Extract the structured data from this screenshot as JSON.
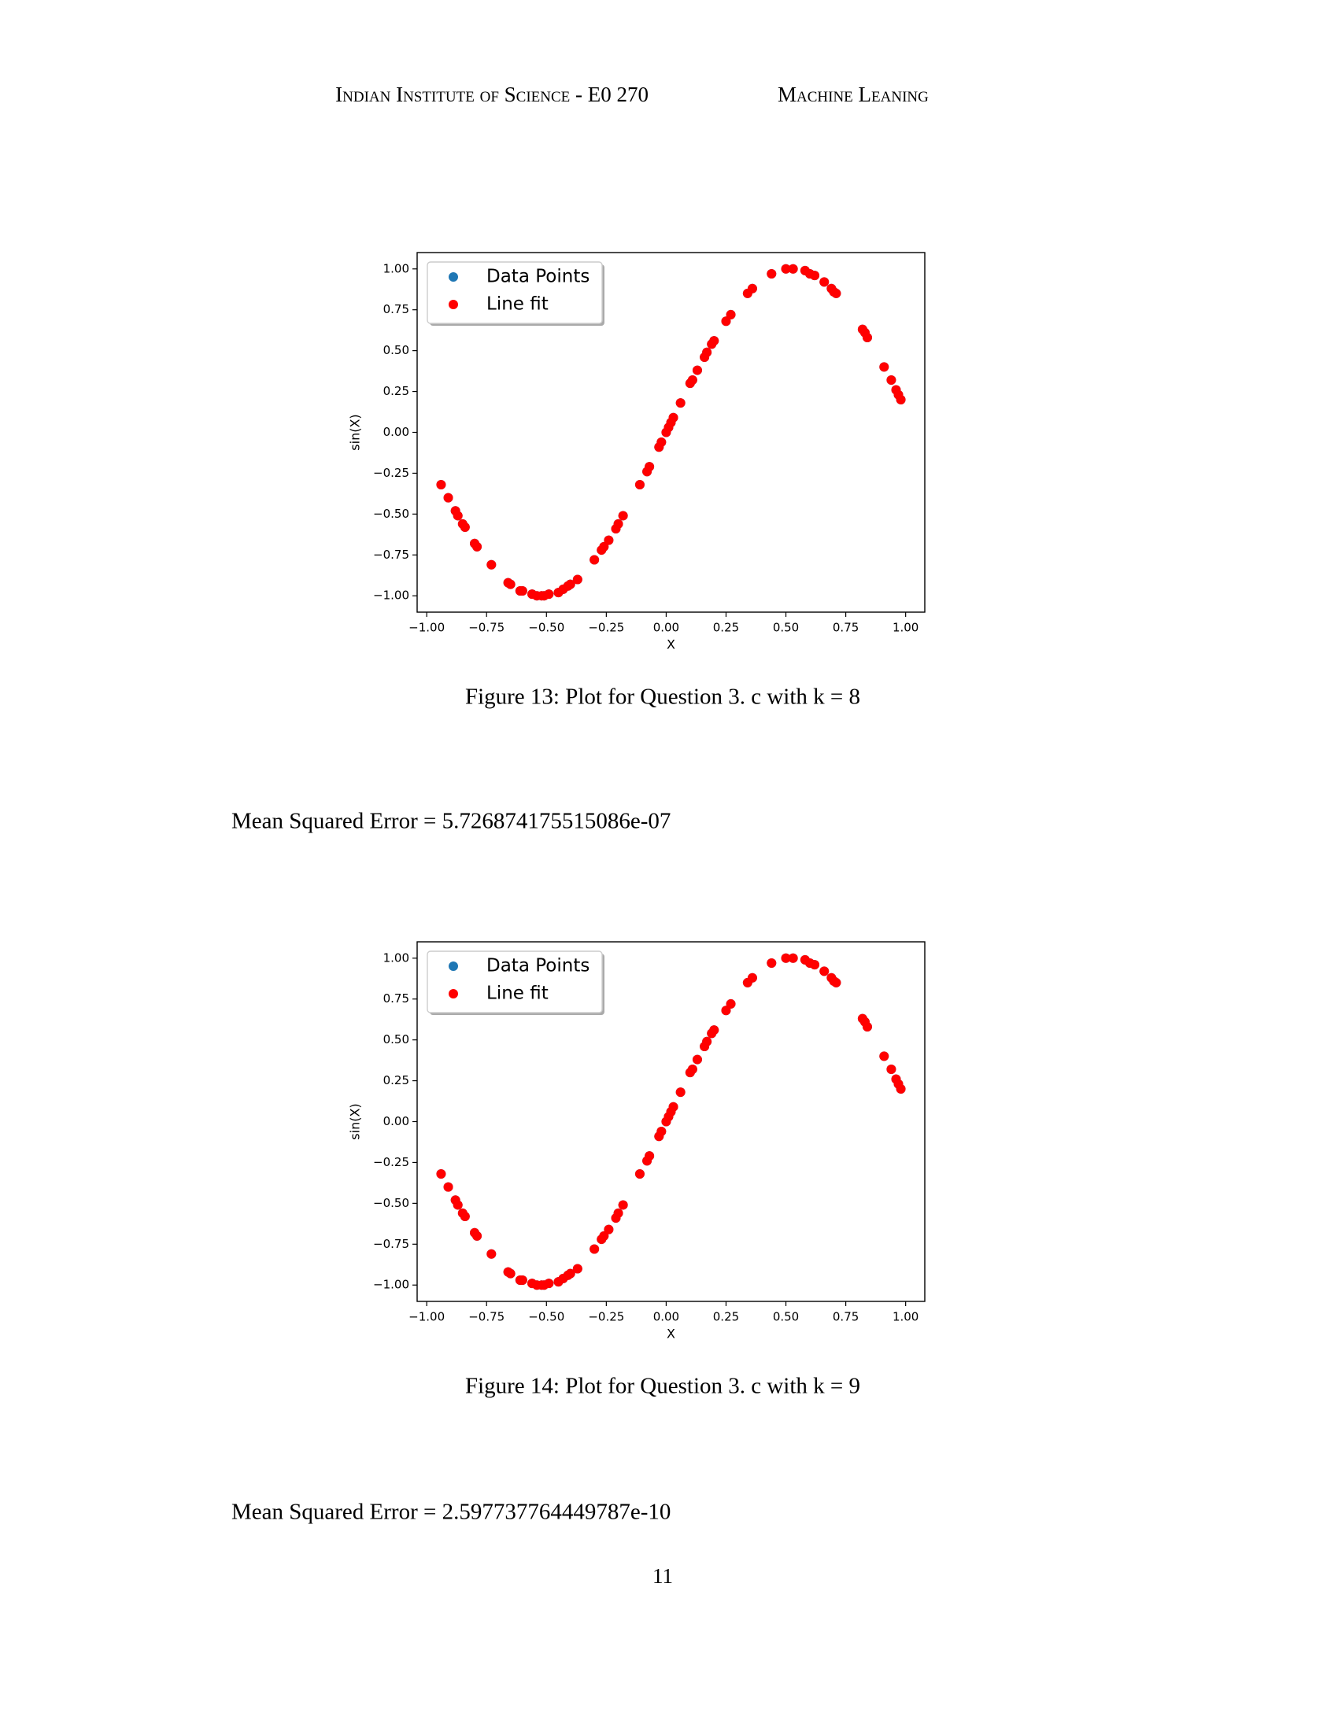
{
  "header": {
    "left": "Indian Institute of Science - E0 270",
    "right": "Machine Leaning"
  },
  "chart_data": [
    {
      "type": "scatter",
      "xlabel": "X",
      "ylabel": "sin(X)",
      "legend": "upper left",
      "caption": "Figure 13: Plot for Question 3. c with k = 8",
      "x": [
        -0.94,
        -0.91,
        -0.88,
        -0.87,
        -0.85,
        -0.84,
        -0.8,
        -0.79,
        -0.73,
        -0.66,
        -0.65,
        -0.61,
        -0.6,
        -0.56,
        -0.54,
        -0.52,
        -0.51,
        -0.49,
        -0.45,
        -0.43,
        -0.41,
        -0.4,
        -0.37,
        -0.3,
        -0.27,
        -0.26,
        -0.24,
        -0.21,
        -0.2,
        -0.18,
        -0.11,
        -0.08,
        -0.07,
        -0.03,
        -0.02,
        0.0,
        0.01,
        0.02,
        0.03,
        0.06,
        0.1,
        0.11,
        0.13,
        0.16,
        0.17,
        0.19,
        0.2,
        0.25,
        0.27,
        0.34,
        0.36,
        0.44,
        0.5,
        0.53,
        0.58,
        0.6,
        0.62,
        0.66,
        0.69,
        0.7,
        0.71,
        0.82,
        0.83,
        0.84,
        0.91,
        0.94,
        0.96,
        0.97,
        0.98
      ],
      "series": [
        {
          "name": "Data Points",
          "color": "#1f77b4",
          "values": [
            -0.32,
            -0.4,
            -0.48,
            -0.51,
            -0.56,
            -0.58,
            -0.68,
            -0.7,
            -0.81,
            -0.92,
            -0.93,
            -0.97,
            -0.97,
            -0.99,
            -1.0,
            -1.0,
            -1.0,
            -0.99,
            -0.98,
            -0.96,
            -0.94,
            -0.93,
            -0.9,
            -0.78,
            -0.72,
            -0.7,
            -0.66,
            -0.59,
            -0.56,
            -0.51,
            -0.32,
            -0.24,
            -0.21,
            -0.09,
            -0.06,
            0.0,
            0.03,
            0.06,
            0.09,
            0.18,
            0.3,
            0.32,
            0.38,
            0.46,
            0.49,
            0.54,
            0.56,
            0.68,
            0.72,
            0.85,
            0.88,
            0.97,
            1.0,
            1.0,
            0.99,
            0.97,
            0.96,
            0.92,
            0.88,
            0.86,
            0.85,
            0.63,
            0.61,
            0.58,
            0.4,
            0.32,
            0.26,
            0.23,
            0.2
          ]
        },
        {
          "name": "Line fit",
          "color": "#ff0000",
          "values": [
            -0.32,
            -0.4,
            -0.48,
            -0.51,
            -0.56,
            -0.58,
            -0.68,
            -0.7,
            -0.81,
            -0.92,
            -0.93,
            -0.97,
            -0.97,
            -0.99,
            -1.0,
            -1.0,
            -1.0,
            -0.99,
            -0.98,
            -0.96,
            -0.94,
            -0.93,
            -0.9,
            -0.78,
            -0.72,
            -0.7,
            -0.66,
            -0.59,
            -0.56,
            -0.51,
            -0.32,
            -0.24,
            -0.21,
            -0.09,
            -0.06,
            0.0,
            0.03,
            0.06,
            0.09,
            0.18,
            0.3,
            0.32,
            0.38,
            0.46,
            0.49,
            0.54,
            0.56,
            0.68,
            0.72,
            0.85,
            0.88,
            0.97,
            1.0,
            1.0,
            0.99,
            0.97,
            0.96,
            0.92,
            0.88,
            0.86,
            0.85,
            0.63,
            0.61,
            0.58,
            0.4,
            0.32,
            0.26,
            0.23,
            0.2
          ]
        }
      ],
      "xlim": [
        -1.04,
        1.08
      ],
      "ylim": [
        -1.1,
        1.1
      ],
      "xticks": [
        {
          "value": -1,
          "label": "−1.00"
        },
        {
          "value": -0.75,
          "label": "−0.75"
        },
        {
          "value": -0.5,
          "label": "−0.50"
        },
        {
          "value": -0.25,
          "label": "−0.25"
        },
        {
          "value": 0,
          "label": "0.00"
        },
        {
          "value": 0.25,
          "label": "0.25"
        },
        {
          "value": 0.5,
          "label": "0.50"
        },
        {
          "value": 0.75,
          "label": "0.75"
        },
        {
          "value": 1,
          "label": "1.00"
        }
      ],
      "yticks": [
        {
          "value": -1,
          "label": "−1.00"
        },
        {
          "value": -0.75,
          "label": "−0.75"
        },
        {
          "value": -0.5,
          "label": "−0.50"
        },
        {
          "value": -0.25,
          "label": "−0.25"
        },
        {
          "value": 0,
          "label": "0.00"
        },
        {
          "value": 0.25,
          "label": "0.25"
        },
        {
          "value": 0.5,
          "label": "0.50"
        },
        {
          "value": 0.75,
          "label": "0.75"
        },
        {
          "value": 1,
          "label": "1.00"
        }
      ]
    },
    {
      "type": "scatter",
      "xlabel": "X",
      "ylabel": "sin(X)",
      "legend": "upper left",
      "caption": "Figure 14: Plot for Question 3. c with k = 9",
      "x": [
        -0.94,
        -0.91,
        -0.88,
        -0.87,
        -0.85,
        -0.84,
        -0.8,
        -0.79,
        -0.73,
        -0.66,
        -0.65,
        -0.61,
        -0.6,
        -0.56,
        -0.54,
        -0.52,
        -0.51,
        -0.49,
        -0.45,
        -0.43,
        -0.41,
        -0.4,
        -0.37,
        -0.3,
        -0.27,
        -0.26,
        -0.24,
        -0.21,
        -0.2,
        -0.18,
        -0.11,
        -0.08,
        -0.07,
        -0.03,
        -0.02,
        0.0,
        0.01,
        0.02,
        0.03,
        0.06,
        0.1,
        0.11,
        0.13,
        0.16,
        0.17,
        0.19,
        0.2,
        0.25,
        0.27,
        0.34,
        0.36,
        0.44,
        0.5,
        0.53,
        0.58,
        0.6,
        0.62,
        0.66,
        0.69,
        0.7,
        0.71,
        0.82,
        0.83,
        0.84,
        0.91,
        0.94,
        0.96,
        0.97,
        0.98
      ],
      "series": [
        {
          "name": "Data Points",
          "color": "#1f77b4",
          "values": [
            -0.32,
            -0.4,
            -0.48,
            -0.51,
            -0.56,
            -0.58,
            -0.68,
            -0.7,
            -0.81,
            -0.92,
            -0.93,
            -0.97,
            -0.97,
            -0.99,
            -1.0,
            -1.0,
            -1.0,
            -0.99,
            -0.98,
            -0.96,
            -0.94,
            -0.93,
            -0.9,
            -0.78,
            -0.72,
            -0.7,
            -0.66,
            -0.59,
            -0.56,
            -0.51,
            -0.32,
            -0.24,
            -0.21,
            -0.09,
            -0.06,
            0.0,
            0.03,
            0.06,
            0.09,
            0.18,
            0.3,
            0.32,
            0.38,
            0.46,
            0.49,
            0.54,
            0.56,
            0.68,
            0.72,
            0.85,
            0.88,
            0.97,
            1.0,
            1.0,
            0.99,
            0.97,
            0.96,
            0.92,
            0.88,
            0.86,
            0.85,
            0.63,
            0.61,
            0.58,
            0.4,
            0.32,
            0.26,
            0.23,
            0.2
          ]
        },
        {
          "name": "Line fit",
          "color": "#ff0000",
          "values": [
            -0.32,
            -0.4,
            -0.48,
            -0.51,
            -0.56,
            -0.58,
            -0.68,
            -0.7,
            -0.81,
            -0.92,
            -0.93,
            -0.97,
            -0.97,
            -0.99,
            -1.0,
            -1.0,
            -1.0,
            -0.99,
            -0.98,
            -0.96,
            -0.94,
            -0.93,
            -0.9,
            -0.78,
            -0.72,
            -0.7,
            -0.66,
            -0.59,
            -0.56,
            -0.51,
            -0.32,
            -0.24,
            -0.21,
            -0.09,
            -0.06,
            0.0,
            0.03,
            0.06,
            0.09,
            0.18,
            0.3,
            0.32,
            0.38,
            0.46,
            0.49,
            0.54,
            0.56,
            0.68,
            0.72,
            0.85,
            0.88,
            0.97,
            1.0,
            1.0,
            0.99,
            0.97,
            0.96,
            0.92,
            0.88,
            0.86,
            0.85,
            0.63,
            0.61,
            0.58,
            0.4,
            0.32,
            0.26,
            0.23,
            0.2
          ]
        }
      ],
      "xlim": [
        -1.04,
        1.08
      ],
      "ylim": [
        -1.1,
        1.1
      ],
      "xticks": [
        {
          "value": -1,
          "label": "−1.00"
        },
        {
          "value": -0.75,
          "label": "−0.75"
        },
        {
          "value": -0.5,
          "label": "−0.50"
        },
        {
          "value": -0.25,
          "label": "−0.25"
        },
        {
          "value": 0,
          "label": "0.00"
        },
        {
          "value": 0.25,
          "label": "0.25"
        },
        {
          "value": 0.5,
          "label": "0.50"
        },
        {
          "value": 0.75,
          "label": "0.75"
        },
        {
          "value": 1,
          "label": "1.00"
        }
      ],
      "yticks": [
        {
          "value": -1,
          "label": "−1.00"
        },
        {
          "value": -0.75,
          "label": "−0.75"
        },
        {
          "value": -0.5,
          "label": "−0.50"
        },
        {
          "value": -0.25,
          "label": "−0.25"
        },
        {
          "value": 0,
          "label": "0.00"
        },
        {
          "value": 0.25,
          "label": "0.25"
        },
        {
          "value": 0.5,
          "label": "0.50"
        },
        {
          "value": 0.75,
          "label": "0.75"
        },
        {
          "value": 1,
          "label": "1.00"
        }
      ]
    }
  ],
  "mse": [
    "Mean Squared Error = 5.726874175515086e-07",
    "Mean Squared Error = 2.597737764449787e-10"
  ],
  "page_number": "11"
}
